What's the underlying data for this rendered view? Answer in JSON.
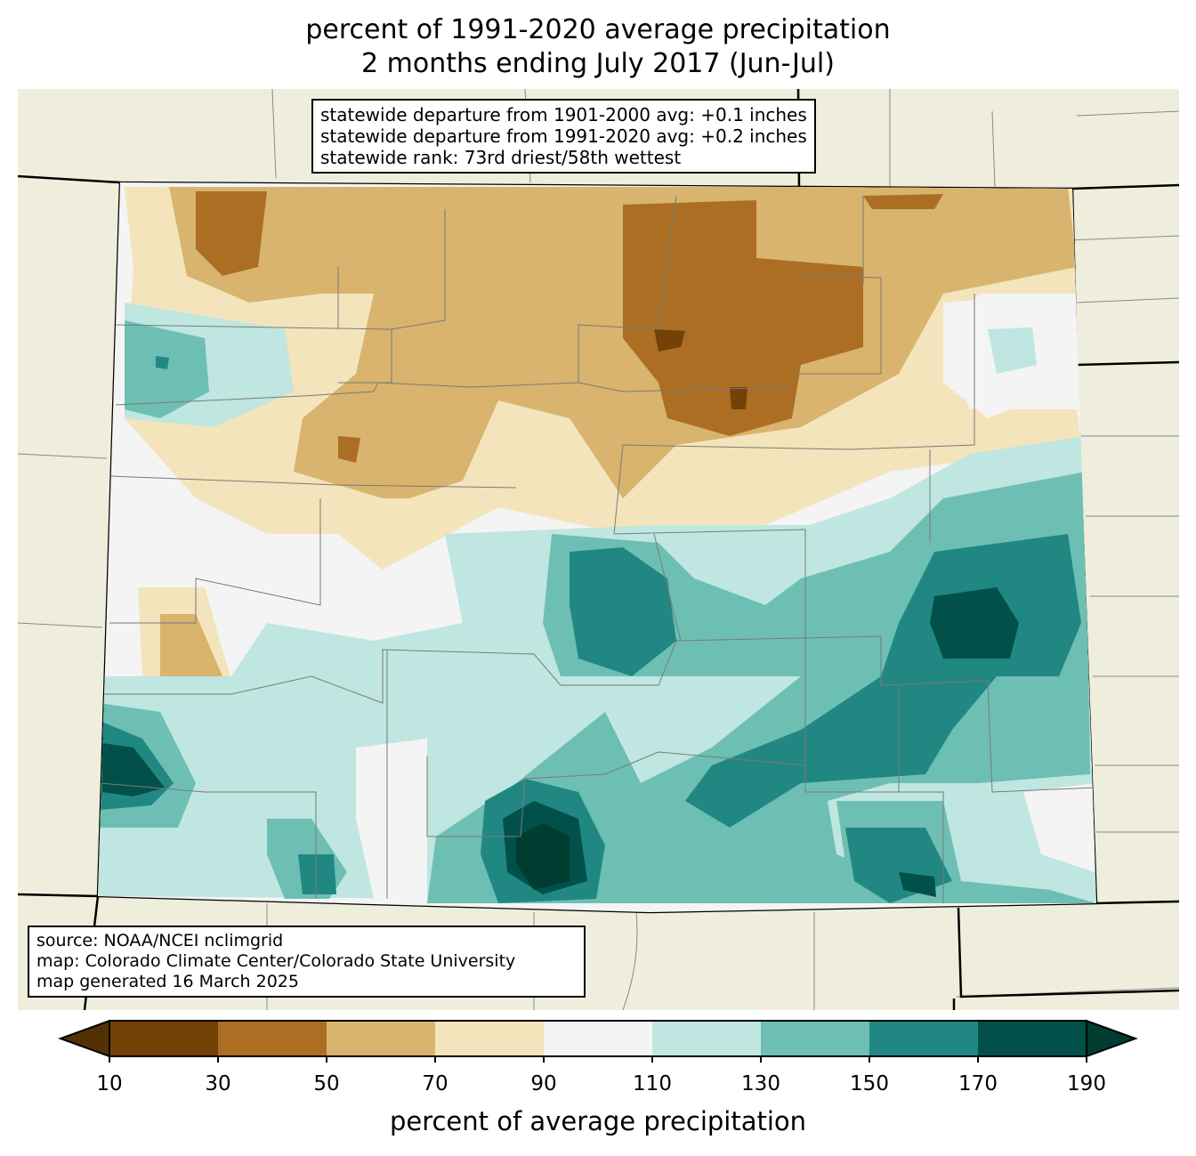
{
  "title_line1": "percent of 1991-2020 average precipitation",
  "title_line2": "2 months ending July 2017 (Jun-Jul)",
  "stats": {
    "line1": "statewide departure from 1901-2000 avg: +0.1 inches",
    "line2": "statewide departure from 1991-2020 avg: +0.2 inches",
    "line3": "statewide rank: 73rd driest/58th wettest"
  },
  "credits": {
    "line1": "source: NOAA/NCEI nclimgrid",
    "line2": "map: Colorado Climate Center/Colorado State University",
    "line3": "map generated 16 March 2025"
  },
  "colorbar": {
    "label": "percent of average precipitation",
    "ticks": [
      "10",
      "30",
      "50",
      "70",
      "90",
      "110",
      "130",
      "150",
      "170",
      "190"
    ],
    "colors": [
      "#744107",
      "#ab6e22",
      "#d8b46e",
      "#f3e4bb",
      "#f3f4f3",
      "#bfe6e0",
      "#6dbfb3",
      "#218782",
      "#01514a"
    ],
    "under_color": "#543005",
    "over_color": "#003c30"
  },
  "background_color": "#efeedc"
}
